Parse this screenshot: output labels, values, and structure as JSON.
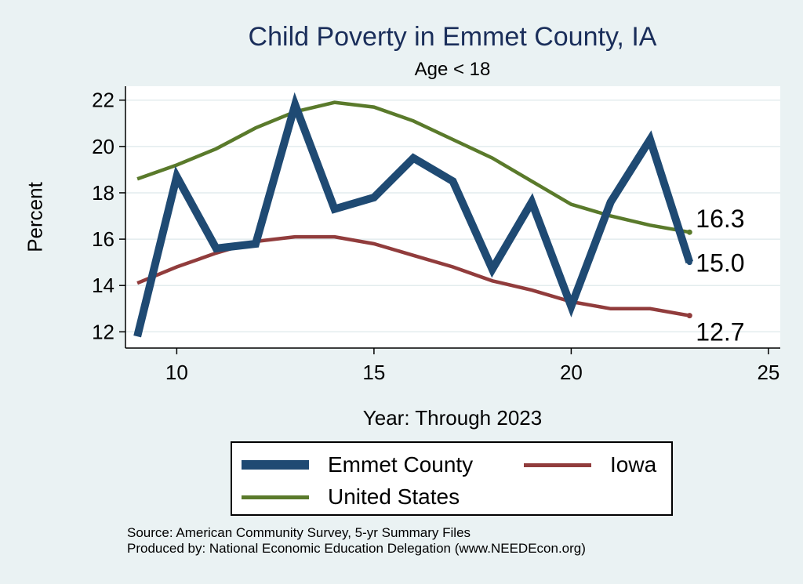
{
  "chart_data": {
    "type": "line",
    "title": "Child Poverty in Emmet County, IA",
    "subtitle": "Age < 18",
    "xlabel": "Year: Through 2023",
    "ylabel": "Percent",
    "xlim": [
      8.7,
      25.3
    ],
    "ylim": [
      11.3,
      22.6
    ],
    "xticks": [
      10,
      15,
      20,
      25
    ],
    "yticks": [
      12,
      14,
      16,
      18,
      20,
      22
    ],
    "series": [
      {
        "name": "Emmet County",
        "color": "#1f4a73",
        "x": [
          9,
          10,
          11,
          12,
          13,
          14,
          15,
          16,
          17,
          18,
          19,
          20,
          21,
          22,
          23
        ],
        "values": [
          11.8,
          18.7,
          15.6,
          15.8,
          21.8,
          17.3,
          17.8,
          19.5,
          18.5,
          14.7,
          17.6,
          13.1,
          17.6,
          20.3,
          15.0
        ],
        "end_label": "15.0"
      },
      {
        "name": "Iowa",
        "color": "#913c3c",
        "x": [
          9,
          10,
          11,
          12,
          13,
          14,
          15,
          16,
          17,
          18,
          19,
          20,
          21,
          22,
          23
        ],
        "values": [
          14.1,
          14.8,
          15.4,
          15.9,
          16.1,
          16.1,
          15.8,
          15.3,
          14.8,
          14.2,
          13.8,
          13.3,
          13.0,
          13.0,
          12.7
        ],
        "end_label": "12.7"
      },
      {
        "name": "United States",
        "color": "#5a7a2b",
        "x": [
          9,
          10,
          11,
          12,
          13,
          14,
          15,
          16,
          17,
          18,
          19,
          20,
          21,
          22,
          23
        ],
        "values": [
          18.6,
          19.2,
          19.9,
          20.8,
          21.5,
          21.9,
          21.7,
          21.1,
          20.3,
          19.5,
          18.5,
          17.5,
          17.0,
          16.6,
          16.3
        ],
        "end_label": "16.3"
      }
    ],
    "legend": {
      "position": "bottom",
      "entries": [
        "Emmet County",
        "Iowa",
        "United States"
      ]
    },
    "source_lines": [
      "Source: American Community Survey, 5-yr Summary Files",
      "Produced by: National Economic Education Delegation (www.NEEDEcon.org)"
    ]
  }
}
